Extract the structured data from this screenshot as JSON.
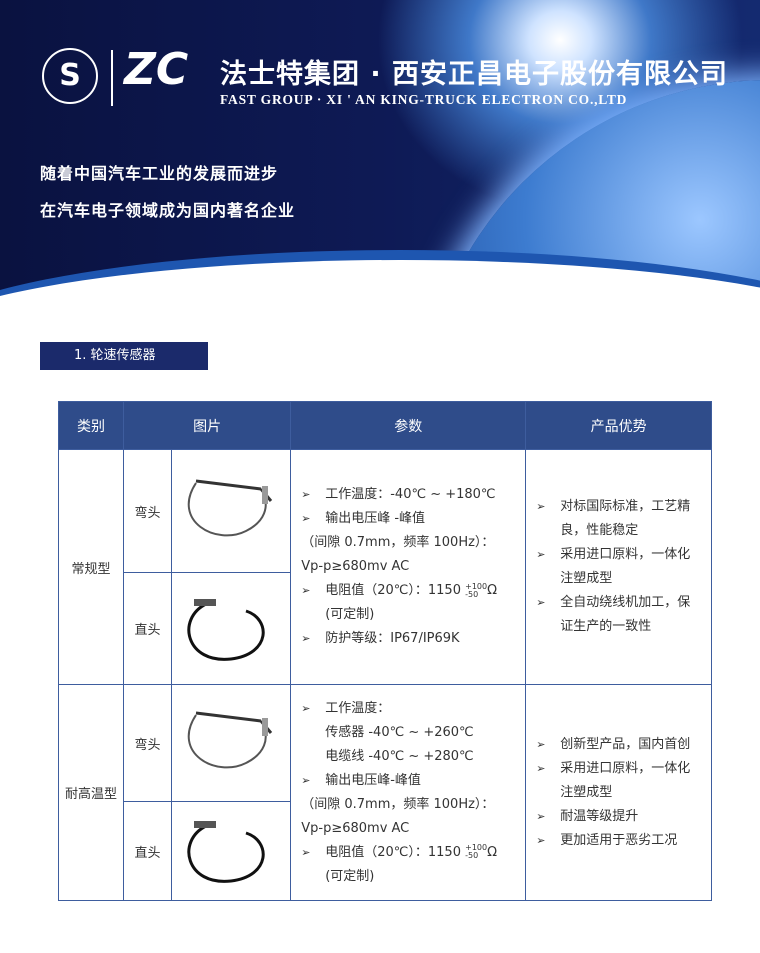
{
  "header": {
    "company_cn": "法士特集团 · 西安正昌电子股份有限公司",
    "company_en": "FAST GROUP · XI ' AN KING-TRUCK ELECTRON CO.,LTD",
    "logo_left": "S",
    "logo_right": "ZC",
    "slogan_1": "随着中国汽车工业的发展而进步",
    "slogan_2": "在汽车电子领域成为国内著名企业"
  },
  "section": {
    "title": "1. 轮速传感器"
  },
  "table": {
    "headers": [
      "类别",
      "图片",
      "参数",
      "产品优势"
    ],
    "rows": [
      {
        "category": "常规型",
        "variants": [
          "弯头",
          "直头"
        ],
        "params": {
          "temp": "工作温度：-40℃ ~ +180℃",
          "voltage": "输出电压峰 -峰值",
          "gap": "（间隙 0.7mm，频率 100Hz）：",
          "vpp": "Vp-p≥680mv AC",
          "resistance": "电阻值（20℃）：1150",
          "tol_plus": "+100",
          "tol_minus": "-50",
          "unit": "Ω",
          "custom": "(可定制)",
          "protection": "防护等级：IP67/IP69K"
        },
        "advantages": [
          "对标国际标准，工艺精良，性能稳定",
          "采用进口原料，一体化注塑成型",
          "全自动绕线机加工，保证生产的一致性"
        ]
      },
      {
        "category": "耐高温型",
        "variants": [
          "弯头",
          "直头"
        ],
        "params": {
          "temp": "工作温度：",
          "sensor_temp": "传感器 -40℃ ~ +260℃",
          "cable_temp": "电缆线 -40℃ ~ +280℃",
          "voltage": "输出电压峰-峰值",
          "gap": "（间隙 0.7mm，频率 100Hz）：",
          "vpp": "Vp-p≥680mv AC",
          "resistance": "电阻值（20℃）：1150",
          "tol_plus": "+100",
          "tol_minus": "-50",
          "unit": "Ω",
          "custom": "(可定制)"
        },
        "advantages": [
          "创新型产品，国内首创",
          "采用进口原料，一体化注塑成型",
          "耐温等级提升",
          "更加适用于恶劣工况"
        ]
      }
    ]
  },
  "icons": {
    "bullet": "arrow-bullet-icon"
  },
  "colors": {
    "banner": "#0e1a55",
    "header_row": "#2f4c8a",
    "tag": "#1b2a6b"
  }
}
